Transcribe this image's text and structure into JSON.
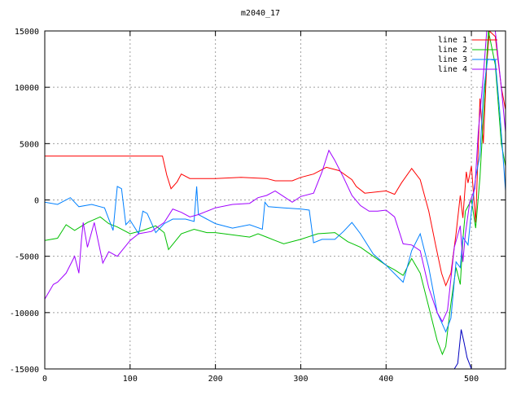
{
  "chart_data": {
    "type": "line",
    "title": "m2040_17",
    "xlabel": "",
    "ylabel": "",
    "xlim": [
      0,
      540
    ],
    "ylim": [
      -15000,
      15000
    ],
    "x_ticks": [
      0,
      100,
      200,
      300,
      400,
      500
    ],
    "y_ticks": [
      -15000,
      -10000,
      -5000,
      0,
      5000,
      10000,
      15000
    ],
    "grid": true,
    "legend_position": "top-right",
    "series": [
      {
        "name": "line 1",
        "color": "#ff0000",
        "points": [
          [
            0,
            3900
          ],
          [
            30,
            3900
          ],
          [
            60,
            3900
          ],
          [
            100,
            3900
          ],
          [
            138,
            3900
          ],
          [
            143,
            2200
          ],
          [
            148,
            1000
          ],
          [
            155,
            1600
          ],
          [
            160,
            2300
          ],
          [
            170,
            1900
          ],
          [
            200,
            1900
          ],
          [
            230,
            2000
          ],
          [
            260,
            1900
          ],
          [
            270,
            1700
          ],
          [
            290,
            1700
          ],
          [
            300,
            2000
          ],
          [
            315,
            2300
          ],
          [
            330,
            2900
          ],
          [
            345,
            2600
          ],
          [
            360,
            1800
          ],
          [
            365,
            1200
          ],
          [
            375,
            600
          ],
          [
            400,
            800
          ],
          [
            410,
            500
          ],
          [
            418,
            1500
          ],
          [
            430,
            2800
          ],
          [
            440,
            1800
          ],
          [
            450,
            -1000
          ],
          [
            458,
            -4000
          ],
          [
            465,
            -6500
          ],
          [
            470,
            -7600
          ],
          [
            476,
            -6500
          ],
          [
            482,
            -3000
          ],
          [
            487,
            400
          ],
          [
            490,
            -1600
          ],
          [
            494,
            2500
          ],
          [
            496,
            1500
          ],
          [
            500,
            3000
          ],
          [
            505,
            -2000
          ],
          [
            510,
            9000
          ],
          [
            514,
            5000
          ],
          [
            518,
            12000
          ],
          [
            521,
            15000
          ],
          [
            528,
            14500
          ],
          [
            535,
            10000
          ],
          [
            540,
            8000
          ]
        ]
      },
      {
        "name": "line 2",
        "color": "#00c000",
        "points": [
          [
            0,
            -3600
          ],
          [
            15,
            -3400
          ],
          [
            25,
            -2200
          ],
          [
            35,
            -2700
          ],
          [
            50,
            -2000
          ],
          [
            65,
            -1500
          ],
          [
            75,
            -2100
          ],
          [
            85,
            -2400
          ],
          [
            100,
            -3000
          ],
          [
            115,
            -2700
          ],
          [
            130,
            -2300
          ],
          [
            140,
            -2900
          ],
          [
            145,
            -4400
          ],
          [
            160,
            -3000
          ],
          [
            175,
            -2600
          ],
          [
            190,
            -2900
          ],
          [
            200,
            -2900
          ],
          [
            220,
            -3100
          ],
          [
            240,
            -3300
          ],
          [
            250,
            -3000
          ],
          [
            260,
            -3300
          ],
          [
            270,
            -3600
          ],
          [
            280,
            -3900
          ],
          [
            300,
            -3500
          ],
          [
            320,
            -3000
          ],
          [
            340,
            -2900
          ],
          [
            355,
            -3700
          ],
          [
            370,
            -4200
          ],
          [
            385,
            -5000
          ],
          [
            400,
            -5800
          ],
          [
            410,
            -6200
          ],
          [
            420,
            -6700
          ],
          [
            430,
            -5200
          ],
          [
            440,
            -6500
          ],
          [
            450,
            -9500
          ],
          [
            460,
            -12500
          ],
          [
            466,
            -13700
          ],
          [
            470,
            -13000
          ],
          [
            476,
            -9200
          ],
          [
            482,
            -6000
          ],
          [
            487,
            -7500
          ],
          [
            490,
            -3500
          ],
          [
            493,
            -1000
          ],
          [
            500,
            0
          ],
          [
            505,
            -2500
          ],
          [
            510,
            2000
          ],
          [
            516,
            10000
          ],
          [
            520,
            15000
          ],
          [
            528,
            12000
          ],
          [
            535,
            5000
          ],
          [
            540,
            3000
          ]
        ]
      },
      {
        "name": "line 3",
        "color": "#0080ff",
        "points": [
          [
            0,
            -200
          ],
          [
            15,
            -400
          ],
          [
            30,
            200
          ],
          [
            40,
            -600
          ],
          [
            55,
            -400
          ],
          [
            70,
            -700
          ],
          [
            80,
            -2700
          ],
          [
            85,
            1200
          ],
          [
            90,
            1000
          ],
          [
            95,
            -2200
          ],
          [
            100,
            -1800
          ],
          [
            110,
            -3000
          ],
          [
            115,
            -1000
          ],
          [
            120,
            -1200
          ],
          [
            130,
            -2900
          ],
          [
            140,
            -2100
          ],
          [
            150,
            -1700
          ],
          [
            165,
            -1700
          ],
          [
            175,
            -1900
          ],
          [
            178,
            1200
          ],
          [
            180,
            -1300
          ],
          [
            200,
            -2100
          ],
          [
            220,
            -2500
          ],
          [
            240,
            -2200
          ],
          [
            255,
            -2600
          ],
          [
            258,
            -200
          ],
          [
            262,
            -600
          ],
          [
            280,
            -700
          ],
          [
            300,
            -800
          ],
          [
            310,
            -900
          ],
          [
            315,
            -3800
          ],
          [
            325,
            -3500
          ],
          [
            340,
            -3500
          ],
          [
            350,
            -2800
          ],
          [
            360,
            -2000
          ],
          [
            370,
            -3000
          ],
          [
            385,
            -4800
          ],
          [
            400,
            -5800
          ],
          [
            420,
            -7300
          ],
          [
            430,
            -4500
          ],
          [
            440,
            -3000
          ],
          [
            450,
            -6000
          ],
          [
            460,
            -10000
          ],
          [
            470,
            -11700
          ],
          [
            476,
            -10500
          ],
          [
            482,
            -5500
          ],
          [
            487,
            -6000
          ],
          [
            490,
            -3300
          ],
          [
            496,
            -4000
          ],
          [
            500,
            -1000
          ],
          [
            505,
            2000
          ],
          [
            510,
            4000
          ],
          [
            514,
            9500
          ],
          [
            519,
            12500
          ],
          [
            528,
            12400
          ],
          [
            533,
            8000
          ],
          [
            540,
            800
          ]
        ]
      },
      {
        "name": "line 4",
        "color": "#a000ff",
        "points": [
          [
            0,
            -8800
          ],
          [
            10,
            -7500
          ],
          [
            15,
            -7300
          ],
          [
            25,
            -6500
          ],
          [
            35,
            -5000
          ],
          [
            40,
            -6500
          ],
          [
            43,
            -3500
          ],
          [
            45,
            -2000
          ],
          [
            50,
            -4200
          ],
          [
            58,
            -2000
          ],
          [
            68,
            -5600
          ],
          [
            75,
            -4600
          ],
          [
            85,
            -5000
          ],
          [
            100,
            -3600
          ],
          [
            110,
            -3000
          ],
          [
            125,
            -2800
          ],
          [
            140,
            -2000
          ],
          [
            150,
            -800
          ],
          [
            160,
            -1100
          ],
          [
            170,
            -1500
          ],
          [
            180,
            -1300
          ],
          [
            200,
            -700
          ],
          [
            220,
            -400
          ],
          [
            240,
            -300
          ],
          [
            250,
            200
          ],
          [
            260,
            400
          ],
          [
            270,
            800
          ],
          [
            280,
            300
          ],
          [
            290,
            -200
          ],
          [
            300,
            300
          ],
          [
            315,
            600
          ],
          [
            325,
            2500
          ],
          [
            333,
            4400
          ],
          [
            340,
            3500
          ],
          [
            350,
            2000
          ],
          [
            360,
            400
          ],
          [
            370,
            -500
          ],
          [
            380,
            -1000
          ],
          [
            390,
            -1000
          ],
          [
            400,
            -900
          ],
          [
            410,
            -1500
          ],
          [
            420,
            -3900
          ],
          [
            430,
            -4000
          ],
          [
            440,
            -4500
          ],
          [
            450,
            -7800
          ],
          [
            460,
            -10000
          ],
          [
            466,
            -10800
          ],
          [
            472,
            -9800
          ],
          [
            480,
            -4200
          ],
          [
            487,
            -2300
          ],
          [
            490,
            -5500
          ],
          [
            493,
            -3000
          ],
          [
            498,
            -200
          ],
          [
            504,
            1000
          ],
          [
            508,
            6000
          ],
          [
            514,
            11000
          ],
          [
            518,
            15000
          ],
          [
            528,
            15000
          ],
          [
            535,
            10000
          ],
          [
            540,
            6000
          ]
        ]
      },
      {
        "name": "",
        "color": "#0000c0",
        "points": [
          [
            0,
            -15000
          ],
          [
            480,
            -15000
          ],
          [
            484,
            -14500
          ],
          [
            488,
            -11500
          ],
          [
            491,
            -12500
          ],
          [
            495,
            -14000
          ],
          [
            500,
            -15000
          ],
          [
            540,
            -15000
          ]
        ]
      }
    ]
  }
}
